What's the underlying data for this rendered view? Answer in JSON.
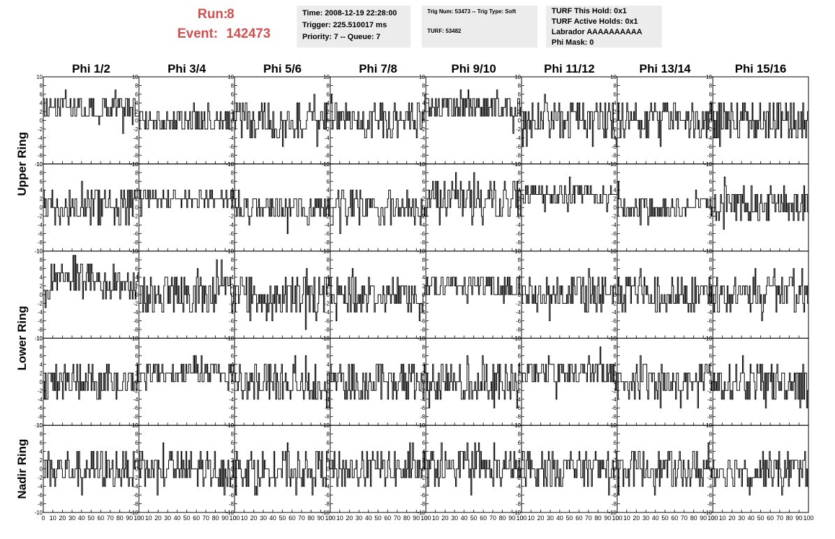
{
  "header": {
    "run_label": "Run:",
    "run_value": "8",
    "event_label": "Event:",
    "event_value": "142473",
    "time": "Time: 2008-12-19 22:28:00",
    "trigger": "Trigger: 225.510017 ms",
    "priority": "Priority: 7 -- Queue: 7",
    "trig_num": "Trig Num: 53473 -- Trig Type: Soft",
    "turf": "TURF: 53482",
    "turf_this_hold": "TURF This Hold: 0x1",
    "turf_active_holds": "TURF Active Holds: 0x1",
    "labrador": "Labrador AAAAAAAAAA",
    "phi_mask": "Phi Mask: 0"
  },
  "chart_data": {
    "type": "line",
    "layout": "grid",
    "columns": [
      "Phi 1/2",
      "Phi 3/4",
      "Phi 5/6",
      "Phi 7/8",
      "Phi 9/10",
      "Phi 11/12",
      "Phi 13/14",
      "Phi 15/16"
    ],
    "rows": [
      "Upper Ring",
      "Upper Ring",
      "Lower Ring",
      "Lower Ring",
      "Nadir Ring"
    ],
    "row_labels": [
      {
        "label": "Upper Ring",
        "span": [
          0,
          1
        ]
      },
      {
        "label": "Lower Ring",
        "span": [
          2,
          3
        ]
      },
      {
        "label": "Nadir Ring",
        "span": [
          4,
          4
        ]
      }
    ],
    "xlim": [
      0,
      100
    ],
    "ylim": [
      -10,
      10
    ],
    "x_ticks": [
      0,
      10,
      20,
      30,
      40,
      50,
      60,
      70,
      80,
      90,
      100
    ],
    "x_tick_labels": [
      "0",
      "10",
      "20",
      "30",
      "40",
      "50",
      "60",
      "70",
      "80",
      "90",
      "100"
    ],
    "y_ticks": [
      -10,
      -8,
      -6,
      -4,
      -2,
      0,
      2,
      4,
      6,
      8,
      10
    ],
    "y_tick_labels": [
      "-10",
      "-8",
      "-6",
      "-4",
      "-2",
      "0",
      "2",
      "4",
      "6",
      "8",
      "10"
    ],
    "samples_per_panel": 100,
    "panel_baselines": [
      [
        3,
        0,
        0,
        0,
        3,
        0,
        0,
        0
      ],
      [
        0,
        2,
        0,
        0,
        2,
        3,
        0,
        1
      ],
      [
        3,
        0,
        0,
        0,
        2,
        0,
        0,
        0
      ],
      [
        0,
        2,
        0,
        0,
        0,
        2,
        0,
        0
      ],
      [
        0,
        0,
        0,
        0,
        0,
        0,
        0,
        0
      ]
    ],
    "panel_spreads": [
      [
        3,
        3,
        4,
        4,
        3,
        4,
        4,
        5
      ],
      [
        4,
        2,
        3,
        4,
        4,
        2,
        3,
        4
      ],
      [
        4,
        5,
        5,
        4,
        3,
        4,
        4,
        4
      ],
      [
        4,
        2,
        4,
        4,
        4,
        3,
        4,
        4
      ],
      [
        4,
        4,
        4,
        4,
        4,
        4,
        4,
        4
      ]
    ],
    "colors": {
      "trace": "#000000",
      "frame": "#000000"
    }
  }
}
